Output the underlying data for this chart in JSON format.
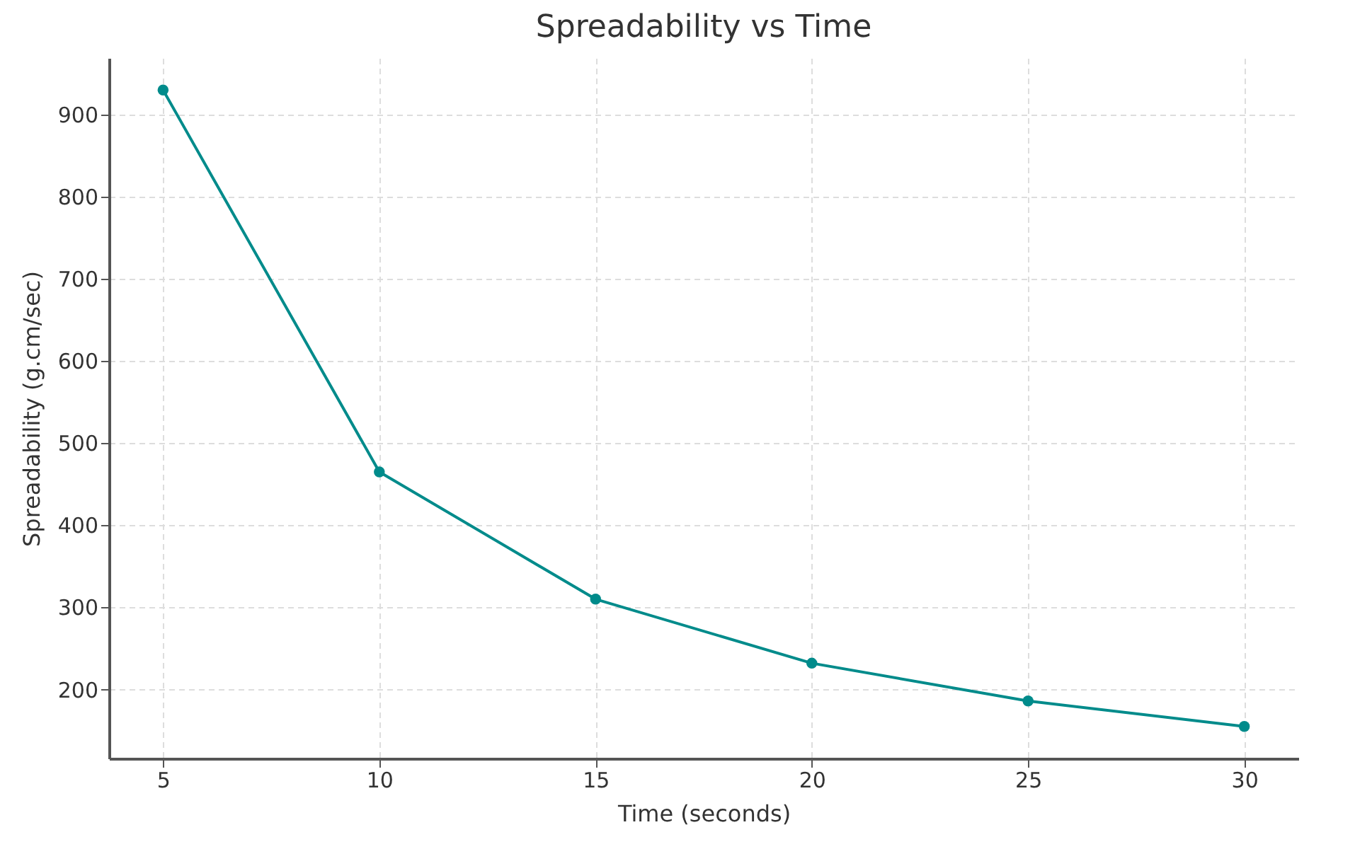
{
  "chart_data": {
    "type": "line",
    "title": "Spreadability vs Time",
    "xlabel": "Time (seconds)",
    "ylabel": "Spreadability (g.cm/sec)",
    "x": [
      5,
      10,
      15,
      20,
      25,
      30
    ],
    "series": [
      {
        "color": "#008b8b",
        "values": [
          930,
          465,
          310,
          232,
          186,
          155
        ]
      }
    ],
    "xlim": [
      3.75,
      31.25
    ],
    "xticks": [
      5,
      10,
      15,
      20,
      25,
      30
    ],
    "ylim": [
      116,
      969
    ],
    "yticks": [
      200,
      300,
      400,
      500,
      600,
      700,
      800,
      900
    ],
    "grid": true,
    "marker": "circle",
    "line_style": "solid"
  }
}
